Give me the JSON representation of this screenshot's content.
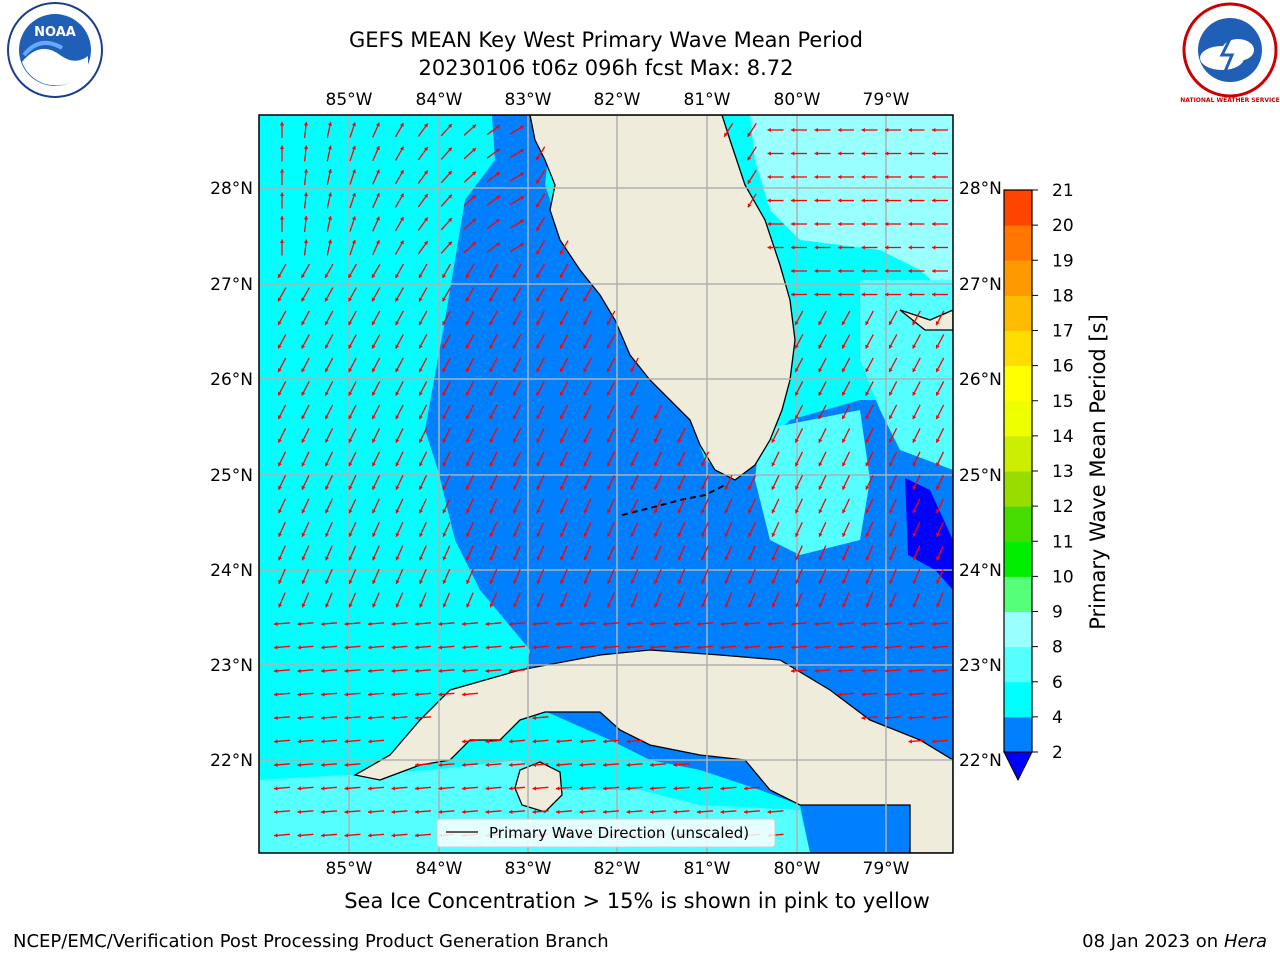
{
  "header": {
    "title": "GEFS MEAN Key West Primary Wave Mean Period",
    "subtitle": "20230106 t06z 096h fcst   Max: 8.72"
  },
  "logos": {
    "noaa": "NOAA",
    "nws": "NATIONAL WEATHER SERVICE"
  },
  "map": {
    "lon_labels": [
      "85°W",
      "84°W",
      "83°W",
      "82°W",
      "81°W",
      "80°W",
      "79°W"
    ],
    "lat_labels": [
      "28°N",
      "27°N",
      "26°N",
      "25°N",
      "24°N",
      "23°N",
      "22°N"
    ],
    "legend_label": "Primary Wave Direction (unscaled)",
    "colors": {
      "land": "#efecdc",
      "light_cyan": "#99ffff",
      "cyan": "#00ffff",
      "mid_cyan": "#55ffff",
      "blue": "#0080ff",
      "dark_blue": "#0000ff",
      "arrow": "#ff0000",
      "grid": "#b0b0b0",
      "coast": "#000000"
    }
  },
  "colorbar": {
    "label": "Primary Wave Mean Period [s]",
    "ticks": [
      "2",
      "4",
      "6",
      "8",
      "9",
      "10",
      "11",
      "12",
      "13",
      "14",
      "15",
      "16",
      "17",
      "18",
      "19",
      "20",
      "21"
    ],
    "colors": [
      "#0080ff",
      "#00ffff",
      "#55ffff",
      "#99ffff",
      "#55ff77",
      "#00ee00",
      "#44dd00",
      "#99dd00",
      "#ccee00",
      "#eeff00",
      "#ffff00",
      "#ffdd00",
      "#ffbb00",
      "#ff9900",
      "#ff7700",
      "#ff4400",
      "#ff0000"
    ],
    "under_color": "#0000ff"
  },
  "note": "Sea Ice Concentration > 15% is shown in pink to yellow",
  "footer": {
    "left": "NCEP/EMC/Verification Post Processing Product Generation Branch",
    "date": "08 Jan 2023 on ",
    "machine": "Hera"
  }
}
